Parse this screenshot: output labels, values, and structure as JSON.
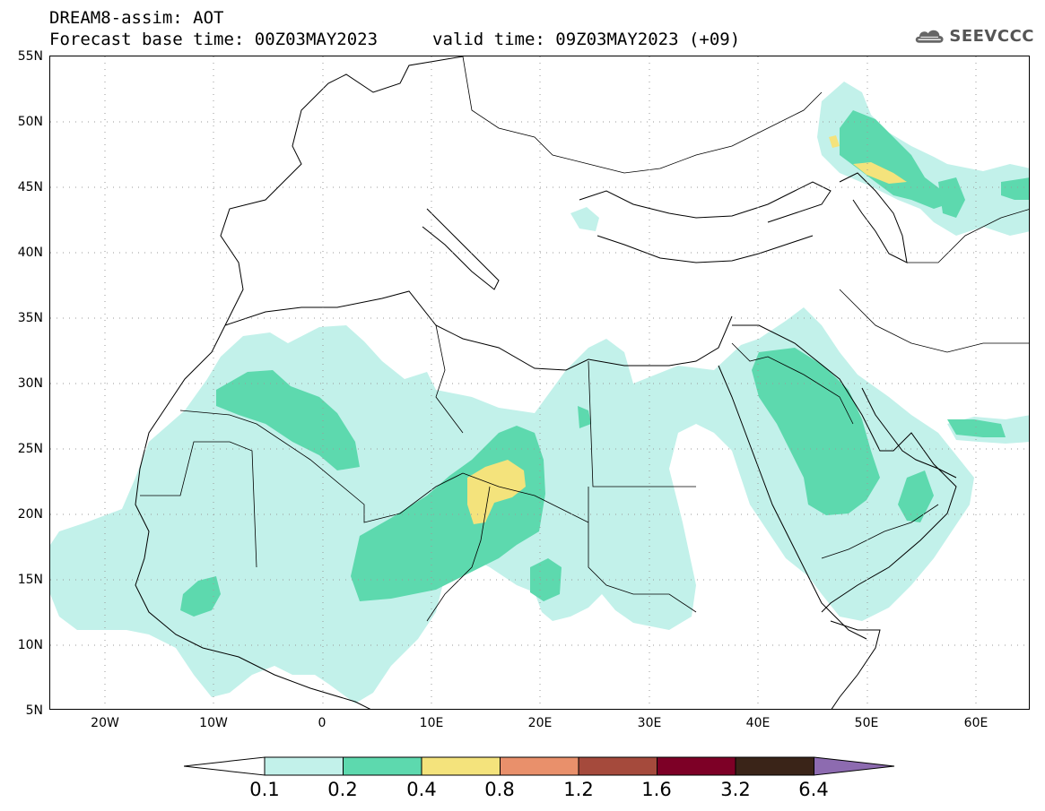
{
  "header": {
    "title": "DREAM8-assim: AOT",
    "base_time": "Forecast base time: 00Z03MAY2023",
    "valid_time": "valid time: 09Z03MAY2023 (+09)",
    "logo_text": "SEEVCCC"
  },
  "map": {
    "lon_range": [
      -25,
      65
    ],
    "lat_range": [
      5,
      55
    ],
    "lat_labels": [
      "55N",
      "50N",
      "45N",
      "40N",
      "35N",
      "30N",
      "25N",
      "20N",
      "15N",
      "10N",
      "5N"
    ],
    "lon_labels": [
      "20W",
      "10W",
      "0",
      "10E",
      "20E",
      "30E",
      "40E",
      "50E",
      "60E"
    ]
  },
  "legend": {
    "values": [
      "0.1",
      "0.2",
      "0.4",
      "0.8",
      "1.2",
      "1.6",
      "3.2",
      "6.4"
    ],
    "colors": [
      "#ffffff",
      "#c2f1ea",
      "#5dd9ae",
      "#f4e37c",
      "#e9906b",
      "#a54a3c",
      "#7d0026",
      "#3a2418",
      "#8d6bb0"
    ],
    "contour_colors": {
      "level_0.1": "#c2f1ea",
      "level_0.2": "#5dd9ae",
      "level_0.4": "#f4e37c"
    }
  }
}
